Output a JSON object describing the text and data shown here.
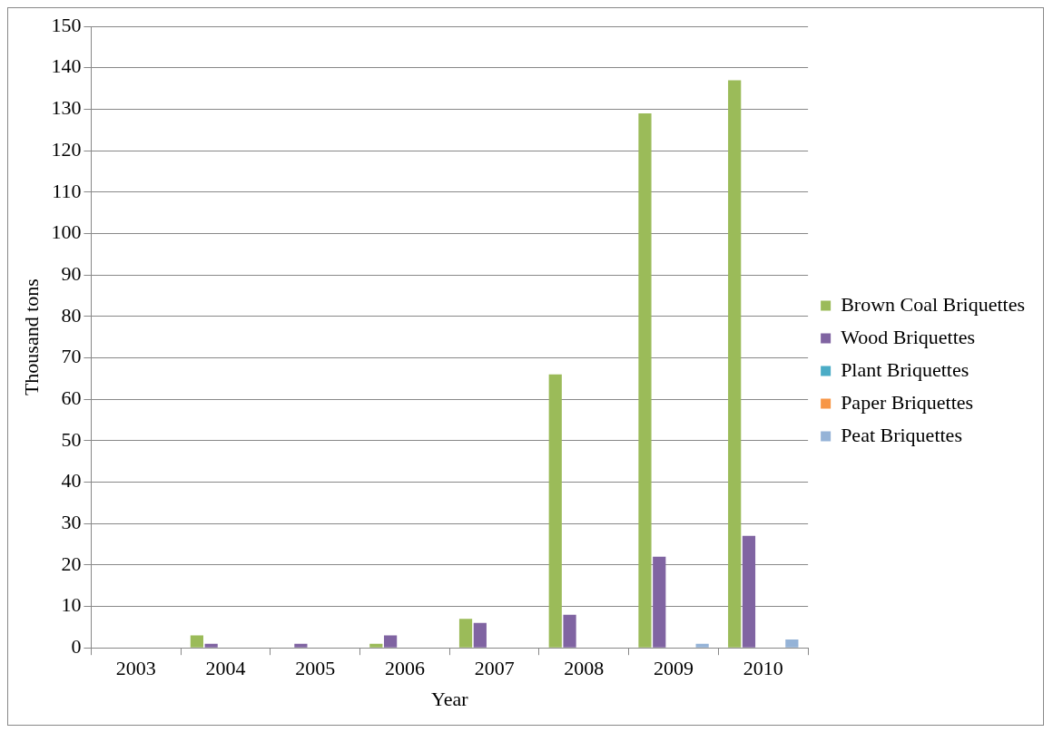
{
  "chart_data": {
    "type": "bar",
    "xlabel": "Year",
    "ylabel": "Thousand tons",
    "categories": [
      "2003",
      "2004",
      "2005",
      "2006",
      "2007",
      "2008",
      "2009",
      "2010"
    ],
    "series": [
      {
        "name": "Brown Coal Briquettes",
        "color": "#9bbb59",
        "values": [
          0,
          3,
          0,
          1,
          7,
          66,
          129,
          137
        ]
      },
      {
        "name": "Wood Briquettes",
        "color": "#8064a2",
        "values": [
          0,
          1,
          1,
          3,
          6,
          8,
          22,
          27
        ]
      },
      {
        "name": "Plant Briquettes",
        "color": "#4bacc6",
        "values": [
          0,
          0,
          0,
          0,
          0,
          0,
          0,
          0
        ]
      },
      {
        "name": "Paper Briquettes",
        "color": "#f79646",
        "values": [
          0,
          0,
          0,
          0,
          0,
          0,
          0,
          0
        ]
      },
      {
        "name": "Peat Briquettes",
        "color": "#95b3d7",
        "values": [
          0,
          0,
          0,
          0,
          0,
          0,
          1,
          2
        ]
      }
    ],
    "ylim": [
      0,
      150
    ],
    "yticks": [
      0,
      10,
      20,
      30,
      40,
      50,
      60,
      70,
      80,
      90,
      100,
      110,
      120,
      130,
      140,
      150
    ],
    "grid": "y",
    "legend": "right"
  }
}
